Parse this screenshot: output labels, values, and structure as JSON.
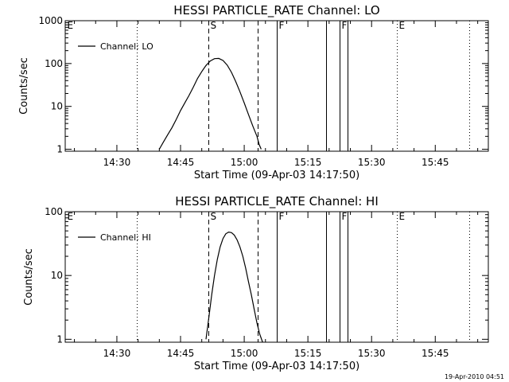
{
  "chart_data": [
    {
      "type": "line",
      "title": "HESSI PARTICLE_RATE Channel: LO",
      "xlabel": "Start Time (09-Apr-03 14:17:50)",
      "ylabel": "Counts/sec",
      "yscale": "log",
      "ylim": [
        0.9,
        1000
      ],
      "xlim": [
        "14:17:50",
        "15:57:30"
      ],
      "x_ticks": [
        "14:30",
        "14:45",
        "15:00",
        "15:15",
        "15:30",
        "15:45"
      ],
      "y_ticks": [
        "1",
        "10",
        "100",
        "1000"
      ],
      "legend": {
        "placement": "top-left",
        "entries": [
          "Channel: LO"
        ]
      },
      "series": [
        {
          "name": "Channel: LO",
          "x": [
            "14:40:00",
            "14:41:00",
            "14:42:00",
            "14:43:00",
            "14:44:00",
            "14:45:00",
            "14:46:00",
            "14:47:00",
            "14:48:00",
            "14:49:00",
            "14:50:00",
            "14:51:00",
            "14:52:00",
            "14:53:00",
            "14:54:00",
            "14:55:00",
            "14:56:00",
            "14:57:00",
            "14:58:00",
            "14:59:00",
            "15:00:00",
            "15:01:00",
            "15:02:00",
            "15:03:00",
            "15:03:30",
            "15:04:00"
          ],
          "y": [
            1,
            1.5,
            2.2,
            3.2,
            5,
            8,
            12,
            18,
            28,
            45,
            65,
            90,
            115,
            130,
            132,
            118,
            92,
            62,
            38,
            22,
            12,
            6.5,
            3.5,
            2,
            1.3,
            1
          ]
        }
      ],
      "markers": [
        {
          "label": "E",
          "time": "14:17:50",
          "style": "dotted"
        },
        {
          "label": "",
          "time": "14:34:40",
          "style": "dotted"
        },
        {
          "label": "S",
          "time": "14:51:30",
          "style": "dashed"
        },
        {
          "label": "",
          "time": "15:03:10",
          "style": "dashed"
        },
        {
          "label": "F",
          "time": "15:07:40",
          "style": "solid"
        },
        {
          "label": "",
          "time": "15:19:20",
          "style": "solid"
        },
        {
          "label": "F",
          "time": "15:22:30",
          "style": "solid"
        },
        {
          "label": "",
          "time": "15:24:20",
          "style": "solid"
        },
        {
          "label": "E",
          "time": "15:36:00",
          "style": "dotted"
        },
        {
          "label": "",
          "time": "15:53:00",
          "style": "dotted"
        }
      ]
    },
    {
      "type": "line",
      "title": "HESSI PARTICLE_RATE Channel: HI",
      "xlabel": "Start Time (09-Apr-03 14:17:50)",
      "ylabel": "Counts/sec",
      "yscale": "log",
      "ylim": [
        0.9,
        100
      ],
      "xlim": [
        "14:17:50",
        "15:57:30"
      ],
      "x_ticks": [
        "14:30",
        "14:45",
        "15:00",
        "15:15",
        "15:30",
        "15:45"
      ],
      "y_ticks": [
        "1",
        "10",
        "100"
      ],
      "legend": {
        "placement": "top-left",
        "entries": [
          "Channel: HI"
        ]
      },
      "series": [
        {
          "name": "Channel: HI",
          "x": [
            "14:51:00",
            "14:51:40",
            "14:52:20",
            "14:53:00",
            "14:53:40",
            "14:54:20",
            "14:55:00",
            "14:55:40",
            "14:56:20",
            "14:57:00",
            "14:57:40",
            "14:58:20",
            "14:59:00",
            "14:59:40",
            "15:00:20",
            "15:01:00",
            "15:01:40",
            "15:02:20",
            "15:03:00",
            "15:03:40",
            "15:04:20"
          ],
          "y": [
            1,
            2.2,
            5,
            10,
            18,
            28,
            38,
            45,
            48,
            47,
            43,
            36,
            28,
            20,
            13,
            8,
            5,
            3,
            1.8,
            1.2,
            0.9
          ]
        }
      ],
      "markers": [
        {
          "label": "E",
          "time": "14:17:50",
          "style": "dotted"
        },
        {
          "label": "",
          "time": "14:34:40",
          "style": "dotted"
        },
        {
          "label": "S",
          "time": "14:51:30",
          "style": "dashed"
        },
        {
          "label": "",
          "time": "15:03:10",
          "style": "dashed"
        },
        {
          "label": "F",
          "time": "15:07:40",
          "style": "solid"
        },
        {
          "label": "",
          "time": "15:19:20",
          "style": "solid"
        },
        {
          "label": "F",
          "time": "15:22:30",
          "style": "solid"
        },
        {
          "label": "",
          "time": "15:24:20",
          "style": "solid"
        },
        {
          "label": "E",
          "time": "15:36:00",
          "style": "dotted"
        },
        {
          "label": "",
          "time": "15:53:00",
          "style": "dotted"
        }
      ]
    }
  ],
  "footer": {
    "timestamp": "19-Apr-2010 04:51"
  }
}
